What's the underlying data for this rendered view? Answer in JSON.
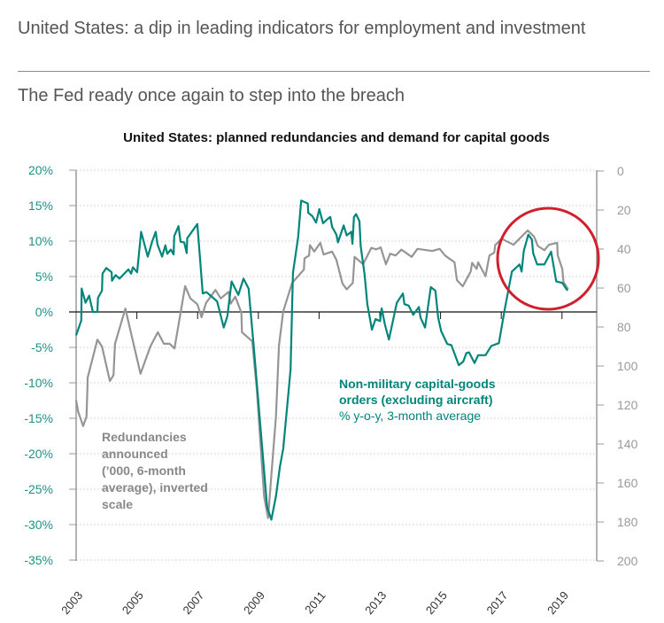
{
  "header": {
    "title": "United States: a dip in leading indicators for employment and investment",
    "subtitle": "The Fed ready once again to step into the breach"
  },
  "colors": {
    "teal": "#00857a",
    "grey": "#959595",
    "highlight": "#d0202e",
    "axis_left_text": "#1e9189",
    "axis_right_text": "#9a9a9a"
  },
  "chart_data": {
    "type": "line",
    "title": "United States: planned redundancies and demand for capital goods",
    "left_axis": {
      "range": [
        -35,
        20
      ],
      "ticks": [
        "20%",
        "15%",
        "10%",
        "5%",
        "0%",
        "-5%",
        "-10%",
        "-15%",
        "-20%",
        "-25%",
        "-30%",
        "-35%"
      ]
    },
    "right_axis": {
      "range": [
        0,
        200
      ],
      "inverted": true,
      "ticks": [
        "0",
        "20",
        "40",
        "60",
        "80",
        "100",
        "120",
        "140",
        "160",
        "180",
        "200"
      ]
    },
    "x_axis": {
      "range": [
        2003,
        2020
      ],
      "ticks": [
        "2003",
        "2005",
        "2007",
        "2009",
        "2011",
        "2013",
        "2015",
        "2017",
        "2019"
      ]
    },
    "grid": "horizontal dotted",
    "annotations": {
      "teal_label": [
        "Non-military capital-goods",
        "orders (excluding aircraft)",
        "%  y-o-y, 3-month average"
      ],
      "grey_label": [
        "Redundancies",
        "announced",
        "(’000, 6-month",
        "average), inverted",
        "scale"
      ],
      "highlight": "circle around 2017-2019"
    },
    "series": [
      {
        "name": "Non-military capital-goods orders (excluding aircraft), % y-o-y, 3-month average",
        "axis": "left",
        "color": "#00857a",
        "points": [
          [
            2003.0,
            -3.3
          ],
          [
            2003.17,
            -1.2
          ],
          [
            2003.18,
            3.3
          ],
          [
            2003.31,
            1.3
          ],
          [
            2003.43,
            2.3
          ],
          [
            2003.55,
            0
          ],
          [
            2003.7,
            0
          ],
          [
            2003.72,
            2
          ],
          [
            2003.85,
            3
          ],
          [
            2003.87,
            5.4
          ],
          [
            2003.99,
            6.2
          ],
          [
            2004.17,
            5.6
          ],
          [
            2004.18,
            4.4
          ],
          [
            2004.3,
            5.2
          ],
          [
            2004.43,
            4.7
          ],
          [
            2004.72,
            6
          ],
          [
            2004.81,
            5.4
          ],
          [
            2004.87,
            6.3
          ],
          [
            2005.01,
            5.6
          ],
          [
            2005.14,
            11.3
          ],
          [
            2005.36,
            7.8
          ],
          [
            2005.5,
            9.9
          ],
          [
            2005.62,
            11.3
          ],
          [
            2005.68,
            9.5
          ],
          [
            2005.83,
            7.8
          ],
          [
            2005.94,
            9.4
          ],
          [
            2006.0,
            8.2
          ],
          [
            2006.12,
            8.8
          ],
          [
            2006.21,
            8.1
          ],
          [
            2006.23,
            10.7
          ],
          [
            2006.37,
            12.1
          ],
          [
            2006.44,
            9.9
          ],
          [
            2006.56,
            9.8
          ],
          [
            2006.64,
            8.3
          ],
          [
            2006.66,
            10.4
          ],
          [
            2006.99,
            12.4
          ],
          [
            2007.17,
            2.6
          ],
          [
            2007.29,
            2.8
          ],
          [
            2007.64,
            1.5
          ],
          [
            2007.72,
            0.2
          ],
          [
            2007.86,
            -2.2
          ],
          [
            2007.98,
            -0.6
          ],
          [
            2008.12,
            4.3
          ],
          [
            2008.34,
            2.4
          ],
          [
            2008.51,
            4.7
          ],
          [
            2008.68,
            3.3
          ],
          [
            2008.85,
            -5
          ],
          [
            2009.29,
            -27.5
          ],
          [
            2009.43,
            -29.3
          ],
          [
            2009.58,
            -26
          ],
          [
            2009.71,
            -21.8
          ],
          [
            2009.82,
            -19.3
          ],
          [
            2010.0,
            -11
          ],
          [
            2010.06,
            -8.1
          ],
          [
            2010.14,
            5.5
          ],
          [
            2010.31,
            10.5
          ],
          [
            2010.41,
            15.7
          ],
          [
            2010.63,
            15.3
          ],
          [
            2010.64,
            14
          ],
          [
            2010.78,
            13.5
          ],
          [
            2010.9,
            12.6
          ],
          [
            2011.01,
            14.5
          ],
          [
            2011.13,
            12.5
          ],
          [
            2011.25,
            13
          ],
          [
            2011.37,
            13.4
          ],
          [
            2011.43,
            12
          ],
          [
            2011.57,
            10.9
          ],
          [
            2011.62,
            9.8
          ],
          [
            2011.81,
            12.2
          ],
          [
            2011.91,
            10.8
          ],
          [
            2012.06,
            11.3
          ],
          [
            2012.1,
            9.6
          ],
          [
            2012.15,
            13.4
          ],
          [
            2012.22,
            13.8
          ],
          [
            2012.33,
            12.8
          ],
          [
            2012.37,
            9.3
          ],
          [
            2012.5,
            5.3
          ],
          [
            2012.59,
            1.1
          ],
          [
            2012.74,
            -2.5
          ],
          [
            2012.86,
            -1
          ],
          [
            2013.01,
            -1.3
          ],
          [
            2013.06,
            0.5
          ],
          [
            2013.17,
            -1.8
          ],
          [
            2013.3,
            -3.9
          ],
          [
            2013.56,
            1.3
          ],
          [
            2013.76,
            2.6
          ],
          [
            2013.81,
            1.1
          ],
          [
            2013.95,
            0.9
          ],
          [
            2014.1,
            -0.4
          ],
          [
            2014.29,
            0.7
          ],
          [
            2014.34,
            -0.8
          ],
          [
            2014.49,
            -2.2
          ],
          [
            2014.68,
            3.5
          ],
          [
            2014.83,
            3
          ],
          [
            2014.92,
            -0.8
          ],
          [
            2015.02,
            -2.7
          ],
          [
            2015.22,
            -4.5
          ],
          [
            2015.36,
            -4.7
          ],
          [
            2015.6,
            -7.5
          ],
          [
            2015.75,
            -7
          ],
          [
            2015.85,
            -5.8
          ],
          [
            2015.94,
            -5.7
          ],
          [
            2016.12,
            -7.2
          ],
          [
            2016.24,
            -6.1
          ],
          [
            2016.48,
            -6.1
          ],
          [
            2016.67,
            -4.8
          ],
          [
            2016.92,
            -4.4
          ],
          [
            2017.11,
            0.3
          ],
          [
            2017.35,
            5.7
          ],
          [
            2017.6,
            6.7
          ],
          [
            2017.67,
            5.7
          ],
          [
            2017.74,
            8.6
          ],
          [
            2017.89,
            10.9
          ],
          [
            2018.01,
            10.2
          ],
          [
            2018.05,
            8.3
          ],
          [
            2018.18,
            6.7
          ],
          [
            2018.42,
            6.7
          ],
          [
            2018.64,
            8.5
          ],
          [
            2018.81,
            4.3
          ],
          [
            2019.01,
            4.1
          ],
          [
            2019.18,
            3
          ]
        ]
      },
      {
        "name": "Redundancies announced ('000, 6-month average), inverted scale",
        "axis": "right",
        "color": "#959595",
        "points": [
          [
            2003.0,
            117.6
          ],
          [
            2003.07,
            123.6
          ],
          [
            2003.23,
            130.8
          ],
          [
            2003.34,
            126
          ],
          [
            2003.37,
            112
          ],
          [
            2003.38,
            106
          ],
          [
            2003.7,
            86.5
          ],
          [
            2003.85,
            90
          ],
          [
            2004.11,
            107.7
          ],
          [
            2004.23,
            104.7
          ],
          [
            2004.28,
            88.6
          ],
          [
            2004.62,
            70.6
          ],
          [
            2005.12,
            104
          ],
          [
            2005.45,
            89.8
          ],
          [
            2005.69,
            82.7
          ],
          [
            2005.89,
            88.6
          ],
          [
            2006.08,
            88.6
          ],
          [
            2006.24,
            91
          ],
          [
            2006.59,
            59
          ],
          [
            2006.76,
            65.3
          ],
          [
            2006.99,
            68.3
          ],
          [
            2007.13,
            75
          ],
          [
            2007.28,
            67.6
          ],
          [
            2007.59,
            61
          ],
          [
            2007.76,
            65.3
          ],
          [
            2008.02,
            62
          ],
          [
            2008.09,
            68
          ],
          [
            2008.24,
            64.4
          ],
          [
            2008.44,
            72.6
          ],
          [
            2008.46,
            82.7
          ],
          [
            2008.8,
            87.3
          ],
          [
            2008.95,
            112
          ],
          [
            2009.19,
            166.8
          ],
          [
            2009.32,
            178
          ],
          [
            2009.43,
            156
          ],
          [
            2009.58,
            126
          ],
          [
            2009.68,
            89.5
          ],
          [
            2009.82,
            72
          ],
          [
            2010.11,
            57.4
          ],
          [
            2010.5,
            50.5
          ],
          [
            2010.52,
            44.8
          ],
          [
            2010.67,
            43.3
          ],
          [
            2010.7,
            38
          ],
          [
            2010.84,
            41.3
          ],
          [
            2011.04,
            36.8
          ],
          [
            2011.15,
            42.8
          ],
          [
            2011.43,
            41.3
          ],
          [
            2011.57,
            45.6
          ],
          [
            2011.77,
            57.7
          ],
          [
            2011.91,
            60.7
          ],
          [
            2012.11,
            57.4
          ],
          [
            2012.17,
            44
          ],
          [
            2012.45,
            47.8
          ],
          [
            2012.72,
            39.4
          ],
          [
            2012.88,
            40.2
          ],
          [
            2013.03,
            39.2
          ],
          [
            2013.2,
            47.8
          ],
          [
            2013.34,
            42.4
          ],
          [
            2013.52,
            43.3
          ],
          [
            2013.71,
            40.3
          ],
          [
            2014.05,
            44
          ],
          [
            2014.24,
            39.9
          ],
          [
            2014.73,
            41
          ],
          [
            2014.97,
            39.9
          ],
          [
            2015.15,
            43.3
          ],
          [
            2015.46,
            46.8
          ],
          [
            2015.54,
            55.9
          ],
          [
            2015.73,
            59.2
          ],
          [
            2015.99,
            51.6
          ],
          [
            2016.04,
            47.1
          ],
          [
            2016.19,
            50.2
          ],
          [
            2016.24,
            46.8
          ],
          [
            2016.48,
            53.9
          ],
          [
            2016.61,
            43.3
          ],
          [
            2016.77,
            41.8
          ],
          [
            2016.8,
            38
          ],
          [
            2017.01,
            34.7
          ],
          [
            2017.4,
            37.8
          ],
          [
            2017.87,
            30.5
          ],
          [
            2018.08,
            33.6
          ],
          [
            2018.2,
            38.4
          ],
          [
            2018.42,
            40.6
          ],
          [
            2018.57,
            37.8
          ],
          [
            2018.84,
            36.8
          ],
          [
            2018.86,
            43.3
          ],
          [
            2019.01,
            50.2
          ],
          [
            2019.05,
            56.9
          ],
          [
            2019.2,
            60.7
          ]
        ]
      }
    ]
  }
}
